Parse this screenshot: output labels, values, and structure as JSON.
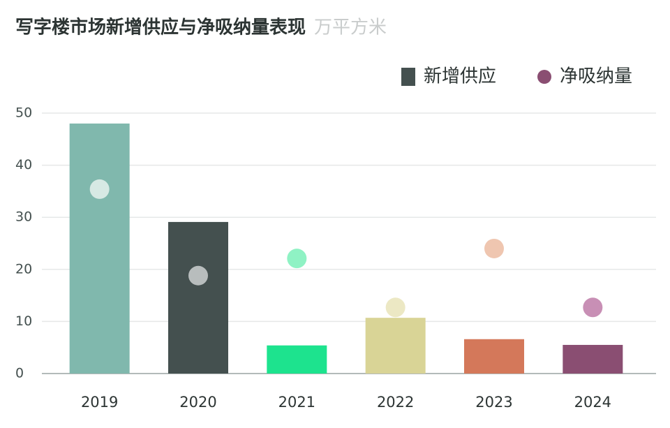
{
  "chart_data": {
    "type": "bar",
    "title": "写字楼市场新增供应与净吸纳量表现",
    "unit": "万平方米",
    "categories": [
      "2019",
      "2020",
      "2021",
      "2022",
      "2023",
      "2024"
    ],
    "series": [
      {
        "name": "新增供应",
        "type": "bar",
        "color": "#44504f",
        "colors": [
          "#80b8ad",
          "#44504f",
          "#1de38e",
          "#d9d496",
          "#d4785a",
          "#8a4e72"
        ],
        "values": [
          48,
          29.1,
          5.4,
          10.7,
          6.6,
          5.5
        ]
      },
      {
        "name": "净吸纳量",
        "type": "scatter",
        "color": "#8a4e72",
        "colors": [
          "#d7e9e4",
          "#b8bdbd",
          "#8ff2c4",
          "#ece8c4",
          "#efc6b0",
          "#c88fb5"
        ],
        "values": [
          35.4,
          18.8,
          22.1,
          12.7,
          24,
          12.7
        ]
      }
    ],
    "ylim": [
      0,
      50
    ],
    "yticks": [
      0,
      10,
      20,
      30,
      40,
      50
    ],
    "grid": true,
    "legend": "top-right"
  }
}
